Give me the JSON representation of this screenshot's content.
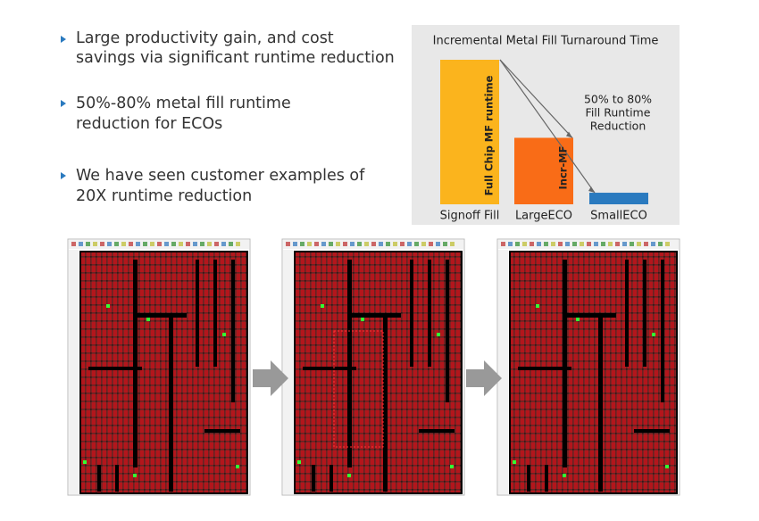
{
  "bullets": [
    [
      "Large productivity gain, and cost",
      "savings via significant runtime reduction"
    ],
    [
      "50%-80% metal fill runtime",
      "reduction for ECOs"
    ],
    [
      "We have seen customer examples of",
      "20X runtime reduction"
    ]
  ],
  "chart_data": {
    "type": "bar",
    "title": "Incremental Metal Fill Turnaround Time",
    "categories": [
      "Signoff Fill",
      "LargeECO",
      "SmallECO"
    ],
    "values": [
      100,
      46,
      8
    ],
    "colors": [
      "#fbb41d",
      "#f96c17",
      "#2a7abf"
    ],
    "ylim": [
      0,
      100
    ],
    "annotations": [
      "Full Chip MF runtime",
      "Incr-MF",
      [
        "50% to 80%",
        "Fill Runtime",
        "Reduction"
      ]
    ]
  }
}
